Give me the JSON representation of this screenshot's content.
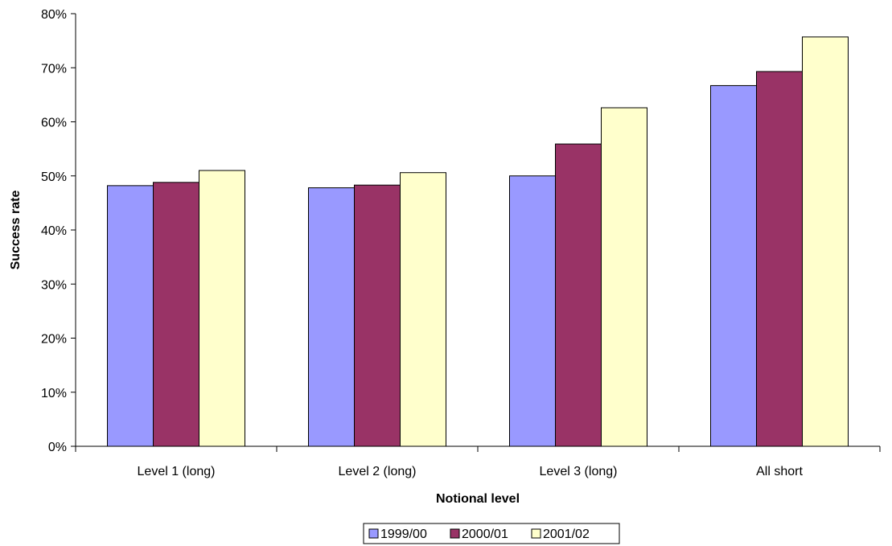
{
  "chart_data": {
    "type": "bar",
    "title": "",
    "xlabel": "Notional level",
    "ylabel": "Success rate",
    "categories": [
      "Level 1 (long)",
      "Level 2 (long)",
      "Level 3 (long)",
      "All short"
    ],
    "series": [
      {
        "name": "1999/00",
        "color": "#9999ff",
        "values": [
          48.2,
          47.8,
          50.0,
          66.7
        ]
      },
      {
        "name": "2000/01",
        "color": "#993366",
        "values": [
          48.8,
          48.3,
          55.9,
          69.3
        ]
      },
      {
        "name": "2001/02",
        "color": "#ffffcc",
        "values": [
          51.0,
          50.6,
          62.6,
          75.7
        ]
      }
    ],
    "ylim": [
      0,
      80
    ],
    "yticks": [
      0,
      10,
      20,
      30,
      40,
      50,
      60,
      70,
      80
    ],
    "ytick_labels": [
      "0%",
      "10%",
      "20%",
      "30%",
      "40%",
      "50%",
      "60%",
      "70%",
      "80%"
    ],
    "grid": false,
    "legend_position": "bottom"
  }
}
